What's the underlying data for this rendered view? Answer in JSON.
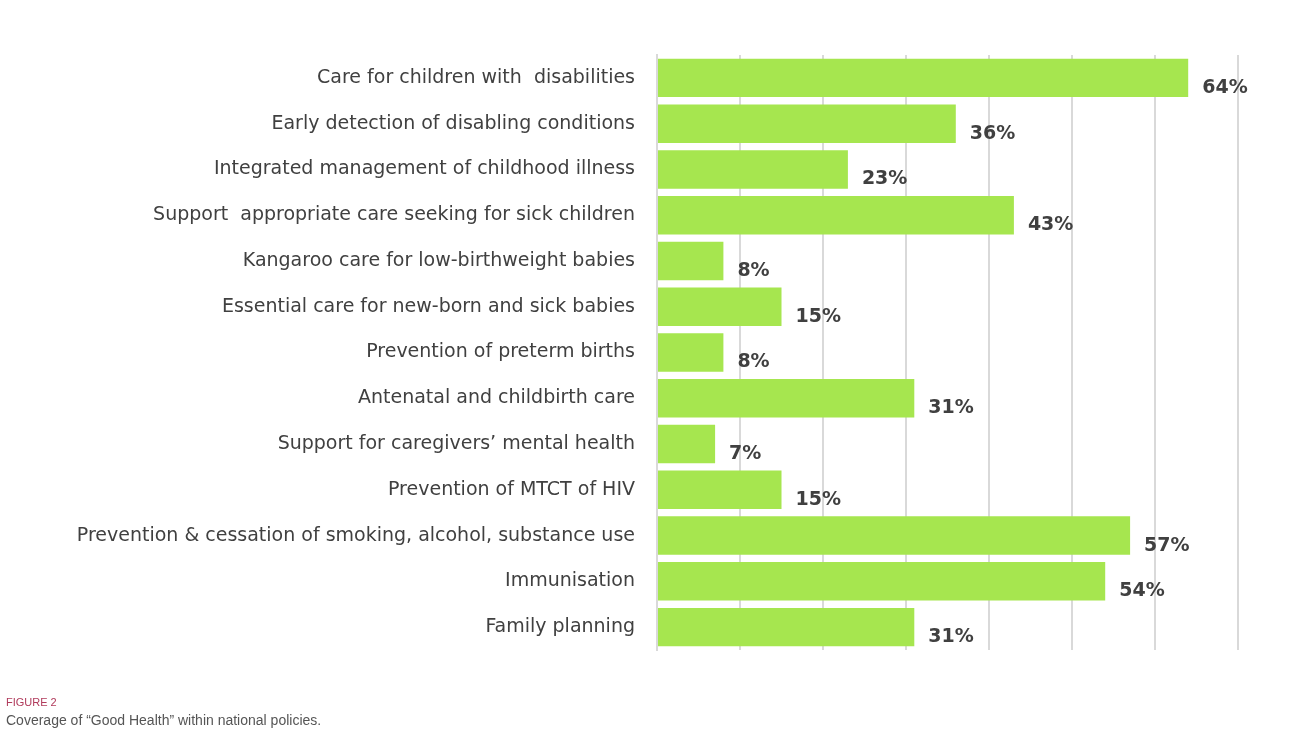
{
  "chart_data": {
    "type": "bar",
    "orientation": "horizontal",
    "categories": [
      "Care for children with  disabilities",
      "Early detection of disabling conditions",
      "Integrated management of childhood illness",
      "Support  appropriate care seeking for sick children",
      "Kangaroo care for low-birthweight babies",
      "Essential care for new-born and sick babies",
      "Prevention of preterm births",
      "Antenatal and childbirth care",
      "Support for caregivers’ mental health",
      "Prevention of MTCT of HIV",
      "Prevention & cessation of smoking, alcohol, substance use",
      "Immunisation",
      "Family planning"
    ],
    "values": [
      64,
      36,
      23,
      43,
      8,
      15,
      8,
      31,
      7,
      15,
      57,
      54,
      31
    ],
    "value_labels": [
      "64%",
      "36%",
      "23%",
      "43%",
      "8%",
      "15%",
      "8%",
      "31%",
      "7%",
      "15%",
      "57%",
      "54%",
      "31%"
    ],
    "color": "#a6e64f",
    "xlim": [
      0,
      70
    ],
    "xticks": [
      {
        "value": 0,
        "label": null
      },
      {
        "value": 10,
        "label": null
      },
      {
        "value": 20,
        "label": null
      },
      {
        "value": 30,
        "label": null
      },
      {
        "value": 40,
        "label": null
      },
      {
        "value": 50,
        "label": null
      },
      {
        "value": 60,
        "label": null
      },
      {
        "value": 70,
        "label": null
      }
    ],
    "grid": "x",
    "tick_labels": "y",
    "legend": false,
    "annotations": [
      "FIGURE 2",
      "Coverage of “Good Health” within national policies."
    ]
  }
}
